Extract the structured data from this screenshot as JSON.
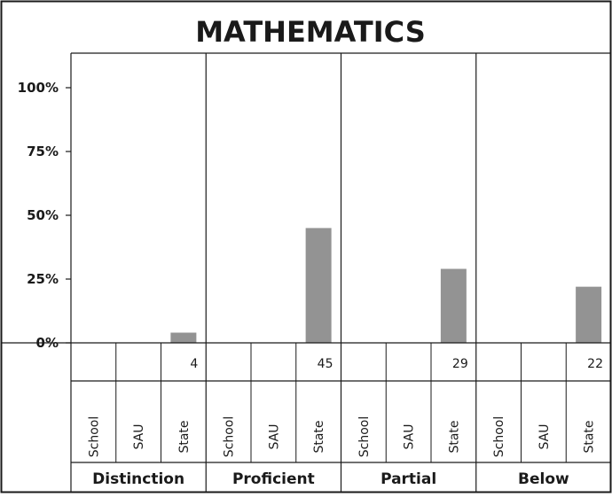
{
  "chart_data": {
    "type": "bar",
    "title": "MATHEMATICS",
    "groups": [
      "Distinction",
      "Proficient",
      "Partial",
      "Below"
    ],
    "subcategories": [
      "School",
      "SAU",
      "State"
    ],
    "series": [
      {
        "name": "School",
        "values": [
          null,
          null,
          null,
          null
        ],
        "labels": [
          "",
          "",
          "",
          ""
        ]
      },
      {
        "name": "SAU",
        "values": [
          null,
          null,
          null,
          null
        ],
        "labels": [
          "",
          "",
          "",
          ""
        ]
      },
      {
        "name": "State",
        "values": [
          4,
          45,
          29,
          22
        ],
        "labels": [
          "4",
          "45",
          "29",
          "22"
        ]
      }
    ],
    "yticks": [
      0,
      25,
      50,
      75,
      100
    ],
    "ytick_labels": [
      "0%",
      "25%",
      "50%",
      "75%",
      "100%"
    ],
    "ylim": [
      0,
      100
    ],
    "grid": false,
    "bar_color": "#939393"
  }
}
